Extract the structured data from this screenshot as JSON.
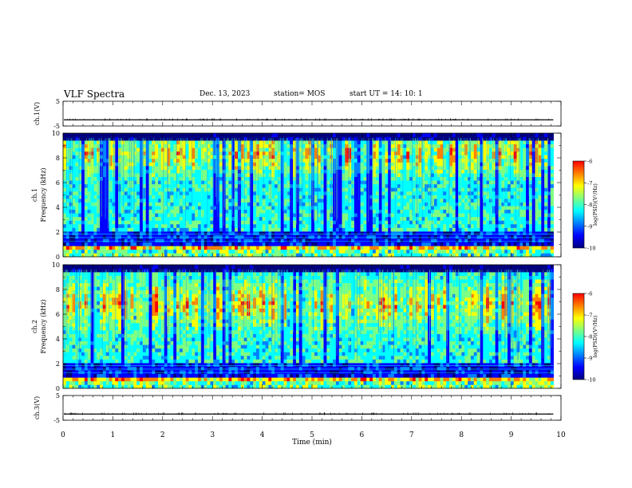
{
  "header": {
    "title": "VLF Spectra",
    "date": "Dec. 13, 2023",
    "station": "station= MOS",
    "start": "start UT = 14: 10: 1"
  },
  "chart_data": [
    {
      "type": "line",
      "name": "ch1-voltage",
      "ylabel": "ch.1(V)",
      "ylim": [
        -5,
        5
      ],
      "yticks": [
        "5",
        "-5"
      ],
      "baseline": -2.5,
      "xlim": [
        0,
        10
      ]
    },
    {
      "type": "heatmap",
      "name": "ch1-spectrogram",
      "ylabel": "ch.1\nFrequency (kHz)",
      "ylabel_lines": [
        "ch.1",
        "Frequency (kHz)"
      ],
      "ylim": [
        0,
        10
      ],
      "yticks": [
        "0",
        "2",
        "4",
        "6",
        "8",
        "10"
      ],
      "xlim": [
        0,
        9.85
      ],
      "colorbar": {
        "label": "log(PSD)(V²/Hz)",
        "range": [
          -10,
          -6
        ],
        "ticks": [
          "-6",
          "-7",
          "-8",
          "-9",
          "-10"
        ]
      }
    },
    {
      "type": "heatmap",
      "name": "ch2-spectrogram",
      "ylabel_lines": [
        "ch.2",
        "Frequency (kHz)"
      ],
      "ylim": [
        0,
        10
      ],
      "yticks": [
        "0",
        "2",
        "4",
        "6",
        "8",
        "10"
      ],
      "xlim": [
        0,
        9.85
      ],
      "colorbar": {
        "label": "log(PSD)(V²/Hz)",
        "range": [
          -10,
          -6
        ],
        "ticks": [
          "-6",
          "-7",
          "-8",
          "-9",
          "-10"
        ]
      }
    },
    {
      "type": "line",
      "name": "ch3-voltage",
      "ylabel": "ch.3(V)",
      "ylim": [
        -5,
        5
      ],
      "yticks": [
        "5",
        "-5"
      ],
      "baseline": -2.5,
      "xlim": [
        0,
        10
      ]
    }
  ],
  "xaxis": {
    "label": "Time (min)",
    "ticks": [
      "0",
      "1",
      "2",
      "3",
      "4",
      "5",
      "6",
      "7",
      "8",
      "9",
      "10"
    ],
    "range": [
      0,
      10
    ]
  },
  "colors": {
    "jet": [
      "#00007f",
      "#0000ff",
      "#0080ff",
      "#00ffff",
      "#80ff80",
      "#ffff00",
      "#ff8000",
      "#ff0000",
      "#ffffff"
    ]
  }
}
